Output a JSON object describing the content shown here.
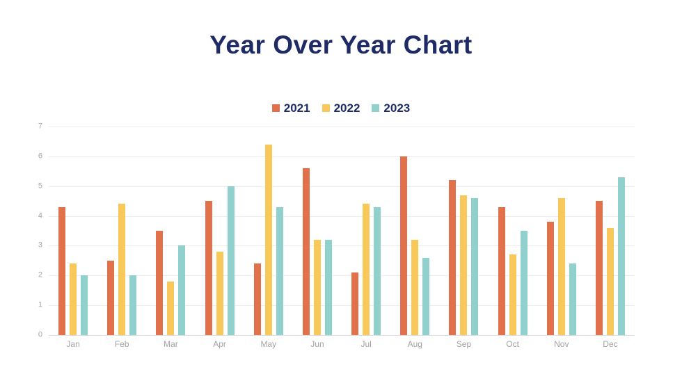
{
  "title": "Year Over Year Chart",
  "colors": {
    "title_text": "#1F2B66",
    "legend_text": "#1F2B66",
    "axis_text": "#A3A3A3",
    "gridline": "#EEEEEE",
    "baseline": "#DADADA",
    "background": "#FFFFFF",
    "series_2021": "#E1714B",
    "series_2022": "#F8C85B",
    "series_2023": "#90D1CD"
  },
  "chart_data": {
    "type": "bar",
    "title": "Year Over Year Chart",
    "xlabel": "",
    "ylabel": "",
    "ylim": [
      0,
      7
    ],
    "yticks": [
      0,
      1,
      2,
      3,
      4,
      5,
      6,
      7
    ],
    "grid": true,
    "legend_position": "top-center",
    "categories": [
      "Jan",
      "Feb",
      "Mar",
      "Apr",
      "May",
      "Jun",
      "Jul",
      "Aug",
      "Sep",
      "Oct",
      "Nov",
      "Dec"
    ],
    "series": [
      {
        "name": "2021",
        "color": "#E1714B",
        "values": [
          4.3,
          2.5,
          3.5,
          4.5,
          2.4,
          5.6,
          2.1,
          6.0,
          5.2,
          4.3,
          3.8,
          4.5
        ]
      },
      {
        "name": "2022",
        "color": "#F8C85B",
        "values": [
          2.4,
          4.4,
          1.8,
          2.8,
          6.4,
          3.2,
          4.4,
          3.2,
          4.7,
          2.7,
          4.6,
          3.6
        ]
      },
      {
        "name": "2023",
        "color": "#90D1CD",
        "values": [
          2.0,
          2.0,
          3.0,
          5.0,
          4.3,
          3.2,
          4.3,
          2.6,
          4.6,
          3.5,
          2.4,
          5.3
        ]
      }
    ]
  }
}
